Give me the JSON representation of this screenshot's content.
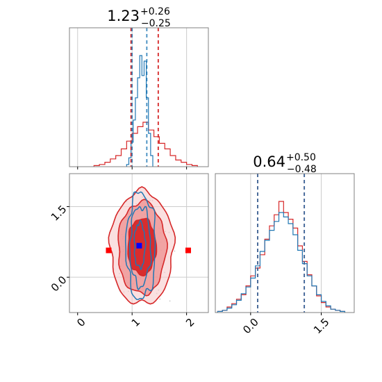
{
  "chart_data": {
    "type": "corner",
    "colors": {
      "red": "#d62728",
      "blue": "#1f77b4",
      "grid": "#cccccc",
      "frame": "#808080",
      "marker_blue": "#0000ff",
      "marker_red": "#ff0000"
    },
    "param1": {
      "median": "1.23",
      "plus": "+0.26",
      "minus": "−0.25",
      "range": [
        -0.15,
        2.4
      ],
      "ticks": [
        0,
        1,
        2
      ],
      "tick_labels": [
        "0",
        "1",
        "2"
      ],
      "blue_quantiles": [
        1.0,
        1.27
      ],
      "red_quantiles": [
        0.98,
        1.48
      ],
      "blue_hist": {
        "edges": [
          0.9,
          0.94,
          0.98,
          1.02,
          1.06,
          1.1,
          1.14,
          1.18,
          1.22,
          1.26,
          1.3,
          1.34,
          1.38
        ],
        "heights": [
          0.02,
          0.08,
          0.22,
          0.42,
          0.62,
          0.8,
          1.0,
          0.82,
          0.95,
          0.62,
          0.3,
          0.1
        ]
      },
      "red_hist": {
        "edges": [
          0.3,
          0.4,
          0.5,
          0.6,
          0.7,
          0.8,
          0.9,
          1.0,
          1.1,
          1.2,
          1.3,
          1.4,
          1.5,
          1.6,
          1.7,
          1.8,
          1.9,
          2.0,
          2.1,
          2.2
        ],
        "heights": [
          0.01,
          0.02,
          0.04,
          0.07,
          0.1,
          0.16,
          0.23,
          0.3,
          0.36,
          0.4,
          0.33,
          0.27,
          0.21,
          0.16,
          0.1,
          0.06,
          0.04,
          0.02,
          0.01
        ]
      }
    },
    "param2": {
      "median": "0.64",
      "plus": "+0.50",
      "minus": "−0.48",
      "range": [
        -0.75,
        2.2
      ],
      "ticks": [
        0.0,
        1.5
      ],
      "tick_labels": [
        "0.0",
        "1.5"
      ],
      "blue_quantiles": [
        0.15,
        1.14
      ],
      "red_quantiles": [
        0.15,
        1.14
      ],
      "blue_hist": {
        "edges": [
          -0.7,
          -0.6,
          -0.5,
          -0.4,
          -0.3,
          -0.2,
          -0.1,
          0.0,
          0.1,
          0.2,
          0.3,
          0.4,
          0.5,
          0.6,
          0.7,
          0.8,
          0.9,
          1.0,
          1.1,
          1.2,
          1.3,
          1.4,
          1.5,
          1.6,
          1.7,
          1.8,
          1.9,
          2.0
        ],
        "heights": [
          0.01,
          0.02,
          0.04,
          0.07,
          0.11,
          0.17,
          0.23,
          0.31,
          0.42,
          0.55,
          0.65,
          0.74,
          0.82,
          0.9,
          0.86,
          0.8,
          0.7,
          0.56,
          0.44,
          0.33,
          0.24,
          0.16,
          0.1,
          0.06,
          0.03,
          0.02,
          0.01
        ]
      },
      "red_hist": {
        "edges": [
          -0.7,
          -0.6,
          -0.5,
          -0.4,
          -0.3,
          -0.2,
          -0.1,
          0.0,
          0.1,
          0.2,
          0.3,
          0.4,
          0.5,
          0.6,
          0.7,
          0.8,
          0.9,
          1.0,
          1.1,
          1.2,
          1.3,
          1.4,
          1.5,
          1.6,
          1.7,
          1.8,
          1.9,
          2.0
        ],
        "heights": [
          0.01,
          0.02,
          0.05,
          0.08,
          0.12,
          0.16,
          0.24,
          0.33,
          0.4,
          0.52,
          0.66,
          0.78,
          0.88,
          1.0,
          0.9,
          0.84,
          0.76,
          0.6,
          0.46,
          0.34,
          0.24,
          0.15,
          0.09,
          0.05,
          0.03,
          0.02,
          0.01
        ]
      }
    },
    "joint": {
      "x_range": [
        -0.15,
        2.4
      ],
      "y_range": [
        -0.75,
        2.2
      ],
      "grid_x": [
        1,
        2
      ],
      "grid_y": [
        0.0,
        1.5
      ],
      "red_contours": [
        {
          "cx": 1.18,
          "cy": 0.65,
          "rx": 0.26,
          "ry": 0.6,
          "fill": "#d62728",
          "opacity": 0.95
        },
        {
          "cx": 1.18,
          "cy": 0.62,
          "rx": 0.44,
          "ry": 0.98,
          "fill": "#ee8f8f",
          "opacity": 0.75
        },
        {
          "cx": 1.18,
          "cy": 0.62,
          "rx": 0.58,
          "ry": 1.2,
          "fill": "#f7cccc",
          "opacity": 0.6
        }
      ],
      "blue_contours": [
        {
          "cx": 1.14,
          "cy": 0.68,
          "rx": 0.1,
          "ry": 0.48
        },
        {
          "cx": 1.15,
          "cy": 0.66,
          "rx": 0.19,
          "ry": 0.85
        },
        {
          "cx": 1.16,
          "cy": 0.66,
          "rx": 0.27,
          "ry": 1.13
        }
      ],
      "blue_marker": [
        1.13,
        0.67
      ],
      "red_markers": [
        [
          0.57,
          0.57
        ],
        [
          2.03,
          0.57
        ]
      ]
    }
  }
}
